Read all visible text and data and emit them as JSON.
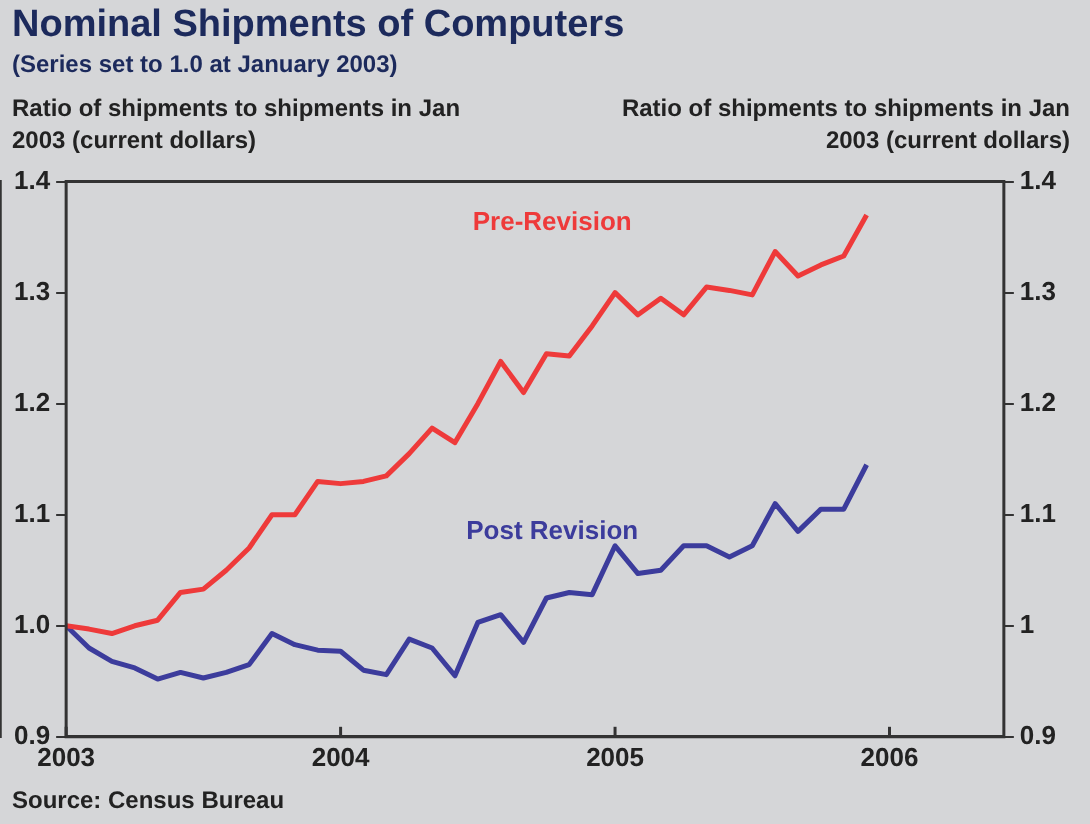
{
  "chart_data": {
    "type": "line",
    "title": "Nominal Shipments of Computers",
    "subtitle": "(Series set to 1.0 at January 2003)",
    "ylabel": "Ratio of shipments to shipments in Jan 2003 (current dollars)",
    "y2label": "Ratio of shipments to shipments in Jan 2003 (current dollars)",
    "annotations": [
      "Source: Census Bureau"
    ],
    "x": [
      "2003-01",
      "2003-02",
      "2003-03",
      "2003-04",
      "2003-05",
      "2003-06",
      "2003-07",
      "2003-08",
      "2003-09",
      "2003-10",
      "2003-11",
      "2003-12",
      "2004-01",
      "2004-02",
      "2004-03",
      "2004-04",
      "2004-05",
      "2004-06",
      "2004-07",
      "2004-08",
      "2004-09",
      "2004-10",
      "2004-11",
      "2004-12",
      "2005-01",
      "2005-02",
      "2005-03",
      "2005-04",
      "2005-05",
      "2005-06",
      "2005-07",
      "2005-08",
      "2005-09",
      "2005-10",
      "2005-11",
      "2005-12"
    ],
    "series": [
      {
        "name": "Pre-Revision",
        "color": "#ee3a3a",
        "values": [
          1.0,
          0.997,
          0.993,
          1.0,
          1.005,
          1.03,
          1.033,
          1.05,
          1.07,
          1.1,
          1.1,
          1.13,
          1.128,
          1.13,
          1.135,
          1.155,
          1.178,
          1.165,
          1.2,
          1.238,
          1.21,
          1.245,
          1.243,
          1.27,
          1.3,
          1.28,
          1.295,
          1.28,
          1.305,
          1.302,
          1.298,
          1.337,
          1.315,
          1.325,
          1.333,
          1.37
        ]
      },
      {
        "name": "Post Revision",
        "color": "#3c3c9c",
        "values": [
          1.0,
          0.98,
          0.968,
          0.962,
          0.952,
          0.958,
          0.953,
          0.958,
          0.965,
          0.993,
          0.983,
          0.978,
          0.977,
          0.96,
          0.956,
          0.988,
          0.98,
          0.955,
          1.003,
          1.01,
          0.985,
          1.025,
          1.03,
          1.028,
          1.072,
          1.047,
          1.05,
          1.072,
          1.072,
          1.062,
          1.072,
          1.11,
          1.085,
          1.105,
          1.105,
          1.145
        ]
      }
    ],
    "xlim": [
      "2003-01",
      "2006-06"
    ],
    "xticks": [
      {
        "value": "2003",
        "label": "2003"
      },
      {
        "value": "2004",
        "label": "2004"
      },
      {
        "value": "2005",
        "label": "2005"
      },
      {
        "value": "2006",
        "label": "2006"
      }
    ],
    "ylim": [
      0.9,
      1.4
    ],
    "yticks": [
      0.9,
      {
        "value": 1,
        "label": "1.0"
      },
      1.1,
      1.2,
      1.3,
      1.4
    ],
    "y2lim": [
      0.9,
      1.4
    ],
    "y2ticks": [
      0.9,
      1,
      1.1,
      1.2,
      1.3,
      1.4
    ],
    "grid": false,
    "legend": false,
    "marker": "none",
    "line_style": "solid"
  }
}
